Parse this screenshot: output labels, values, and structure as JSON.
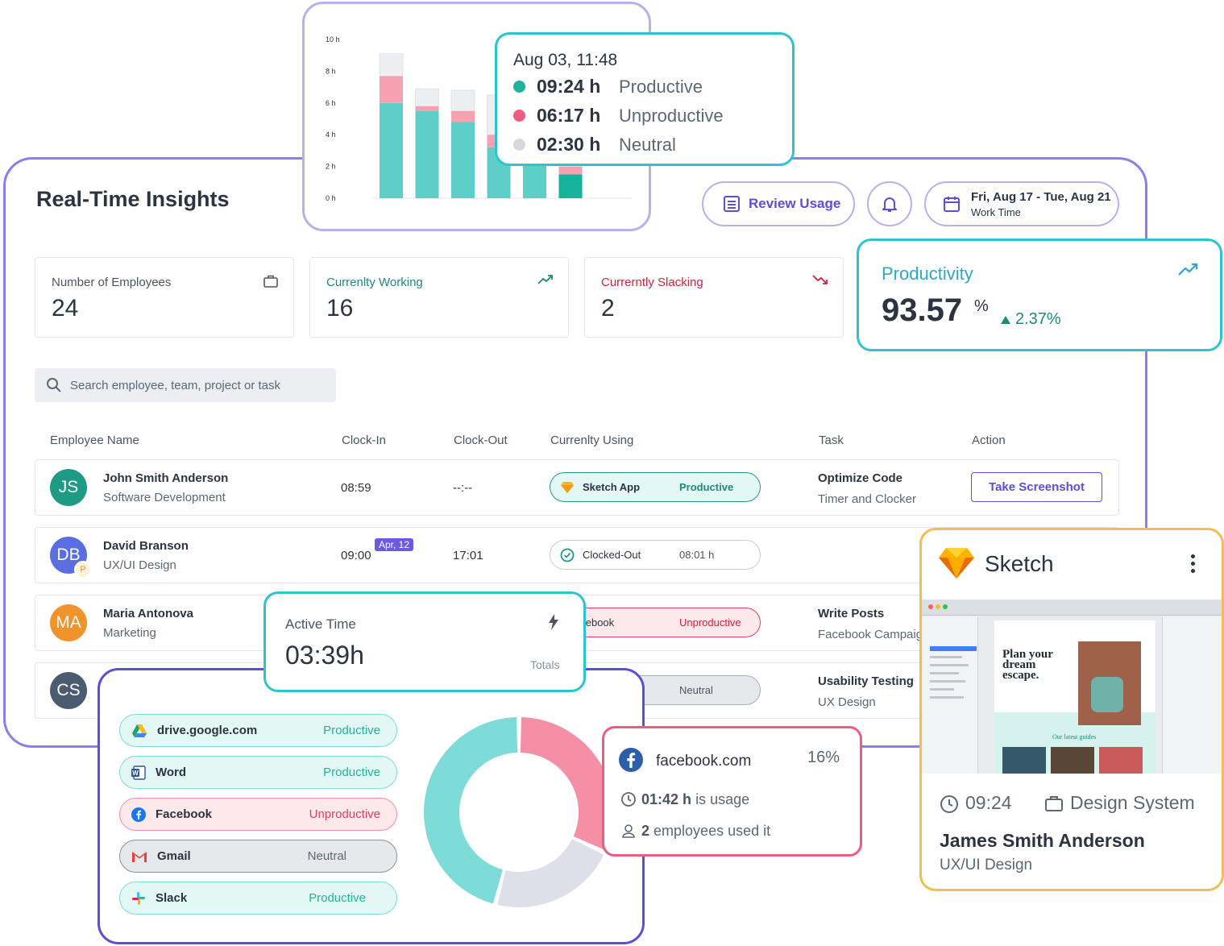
{
  "header": {
    "title": "Real-Time Insights",
    "review_label": "Review Usage",
    "date_range": "Fri, Aug 17 - Tue, Aug 21",
    "date_sub": "Work Time"
  },
  "stats": [
    {
      "label": "Number of Employees",
      "value": "24",
      "color": "#4b5561"
    },
    {
      "label": "Currenlty Working",
      "value": "16",
      "color": "#1e8a78"
    },
    {
      "label": "Currerntly Slacking",
      "value": "2",
      "color": "#d1223f"
    }
  ],
  "productivity": {
    "label": "Productivity",
    "value": "93.57",
    "unit": "%",
    "change": "2.37%"
  },
  "search": {
    "placeholder": "Search employee, team, project or task"
  },
  "table": {
    "headers": [
      "Employee Name",
      "Clock-In",
      "Clock-Out",
      "Currenlty Using",
      "Task",
      "Action"
    ],
    "rows": [
      {
        "initials": "JS",
        "avatar_color": "#1e9a85",
        "name": "John Smith Anderson",
        "dept": "Software Development",
        "clock_in": "08:59",
        "clock_out": "--:--",
        "using_app": "Sketch App",
        "using_status": "Productive",
        "task": "Optimize Code",
        "task_sub": "Timer and Clocker",
        "action": "Take Screenshot"
      },
      {
        "initials": "DB",
        "avatar_color": "#5b6ee1",
        "badge": "P",
        "name": "David Branson",
        "dept": "UX/UI Design",
        "clock_in": "09:00",
        "clock_in_tag": "Apr, 12",
        "clock_out": "17:01",
        "using_app": "Clocked-Out",
        "using_status": "08:01 h"
      },
      {
        "initials": "MA",
        "avatar_color": "#f0932b",
        "name": "Maria Antonova",
        "dept": "Marketing",
        "using_app": "acebook",
        "using_status": "Unproductive",
        "task": "Write Posts",
        "task_sub": "Facebook Campaig"
      },
      {
        "initials": "CS",
        "avatar_color": "#4b5b70",
        "using_status": "Neutral",
        "task": "Usability Testing",
        "task_sub": "UX Design"
      }
    ]
  },
  "chart_data": {
    "type": "bar",
    "stacked": true,
    "y_ticks": [
      "10 h",
      "8 h",
      "6 h",
      "4 h",
      "2 h",
      "0 h"
    ],
    "ylim": [
      0,
      10
    ],
    "series": [
      {
        "name": "Productive",
        "color": "#5ecfc8",
        "values": [
          6.0,
          5.5,
          4.8,
          3.2,
          2.5,
          1.5
        ]
      },
      {
        "name": "Unproductive",
        "color": "#f6a0b0",
        "values": [
          1.7,
          0.3,
          0.7,
          0.8,
          0.6,
          0.5
        ]
      },
      {
        "name": "Neutral",
        "color": "#eceef1",
        "values": [
          1.4,
          1.1,
          1.3,
          2.5,
          1.9,
          1.5
        ]
      }
    ],
    "highlight_color": "#16b39c"
  },
  "tooltip": {
    "date": "Aug 03, 11:48",
    "items": [
      {
        "time": "09:24 h",
        "label": "Productive",
        "color": "#1eb39c"
      },
      {
        "time": "06:17 h",
        "label": "Unproductive",
        "color": "#f05b82"
      },
      {
        "time": "02:30 h",
        "label": "Neutral",
        "color": "#d5d8de"
      }
    ]
  },
  "active_time": {
    "label": "Active Time",
    "value": "03:39h",
    "sub": "Totals"
  },
  "apps": [
    {
      "name": "drive.google.com",
      "status": "Productive",
      "type": "productive",
      "icon": "google-drive-icon"
    },
    {
      "name": "Word",
      "status": "Productive",
      "type": "productive",
      "icon": "word-icon"
    },
    {
      "name": "Facebook",
      "status": "Unproductive",
      "type": "unproductive",
      "icon": "facebook-icon"
    },
    {
      "name": "Gmail",
      "status": "Neutral",
      "type": "neutral",
      "icon": "gmail-icon"
    },
    {
      "name": "Slack",
      "status": "Productive",
      "type": "productive",
      "icon": "slack-icon"
    }
  ],
  "donut": {
    "segments": [
      {
        "label": "Unproductive",
        "value": 32,
        "color": "#f48fa5"
      },
      {
        "label": "Neutral",
        "value": 22,
        "color": "#dedfe8"
      },
      {
        "label": "Productive",
        "value": 46,
        "color": "#7ddcd8"
      }
    ]
  },
  "facebook_popup": {
    "site": "facebook.com",
    "percent": "16%",
    "usage_value": "01:42 h",
    "usage_text": "is usage",
    "employees_value": "2",
    "employees_text": "employees used it"
  },
  "sketch_card": {
    "app": "Sketch",
    "time": "09:24",
    "project": "Design System",
    "name": "James Smith Anderson",
    "dept": "UX/UI Design",
    "preview_heading": "Plan your dream escape.",
    "preview_sub": "Our latest guides"
  }
}
